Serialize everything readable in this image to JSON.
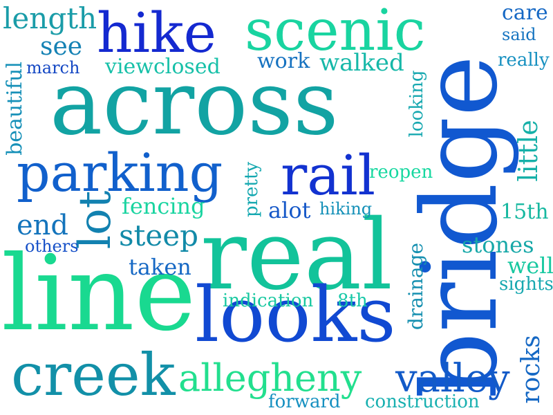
{
  "palette": {
    "teal": "#0f9e9e",
    "green": "#12d89a",
    "blue": "#1048c8",
    "navy": "#1f30c8",
    "azure": "#1270c8",
    "mid": "#139ab0"
  },
  "words": [
    {
      "text": "across",
      "color": "#12a3a3"
    },
    {
      "text": "bridge",
      "color": "#1158d0"
    },
    {
      "text": "real",
      "color": "#12c39a"
    },
    {
      "text": "line",
      "color": "#19d990"
    },
    {
      "text": "looks",
      "color": "#1149d2"
    },
    {
      "text": "parking",
      "color": "#1160cc"
    },
    {
      "text": "hike",
      "color": "#1429d0"
    },
    {
      "text": "scenic",
      "color": "#19d4a0"
    },
    {
      "text": "rail",
      "color": "#1232d0"
    },
    {
      "text": "creek",
      "color": "#1290a8"
    },
    {
      "text": "allegheny",
      "color": "#22df8e"
    },
    {
      "text": "valley",
      "color": "#125ac8"
    },
    {
      "text": "lot",
      "color": "#1281b0"
    },
    {
      "text": "steep",
      "color": "#128aa8"
    },
    {
      "text": "length",
      "color": "#1a9ca8"
    },
    {
      "text": "see",
      "color": "#1582b4"
    },
    {
      "text": "march",
      "color": "#1548c4"
    },
    {
      "text": "viewclosed",
      "color": "#16c0a8"
    },
    {
      "text": "work",
      "color": "#1672c0"
    },
    {
      "text": "walked",
      "color": "#16b8a8"
    },
    {
      "text": "care",
      "color": "#1668c4"
    },
    {
      "text": "said",
      "color": "#1674c0"
    },
    {
      "text": "really",
      "color": "#1690c0"
    },
    {
      "text": "beautiful",
      "color": "#1690b8"
    },
    {
      "text": "looking",
      "color": "#17a8b0"
    },
    {
      "text": "little",
      "color": "#16b0a8"
    },
    {
      "text": "pretty",
      "color": "#15a8b0"
    },
    {
      "text": "reopen",
      "color": "#17d8a0"
    },
    {
      "text": "fencing",
      "color": "#19d4a0"
    },
    {
      "text": "alot",
      "color": "#1658c8"
    },
    {
      "text": "hiking",
      "color": "#1490b8"
    },
    {
      "text": "end",
      "color": "#1474bc"
    },
    {
      "text": "others",
      "color": "#1650c8"
    },
    {
      "text": "taken",
      "color": "#1668c4"
    },
    {
      "text": "15th",
      "color": "#17b8a0"
    },
    {
      "text": "stones",
      "color": "#17a8a8"
    },
    {
      "text": "well",
      "color": "#18c8a0"
    },
    {
      "text": "sights",
      "color": "#18a8b0"
    },
    {
      "text": "drainage",
      "color": "#1690b0"
    },
    {
      "text": "indication",
      "color": "#18c8a0"
    },
    {
      "text": "8th",
      "color": "#18c8a8"
    },
    {
      "text": "rocks",
      "color": "#1568c4"
    },
    {
      "text": "forward",
      "color": "#1690c0"
    },
    {
      "text": "construction",
      "color": "#18b0b0"
    }
  ]
}
